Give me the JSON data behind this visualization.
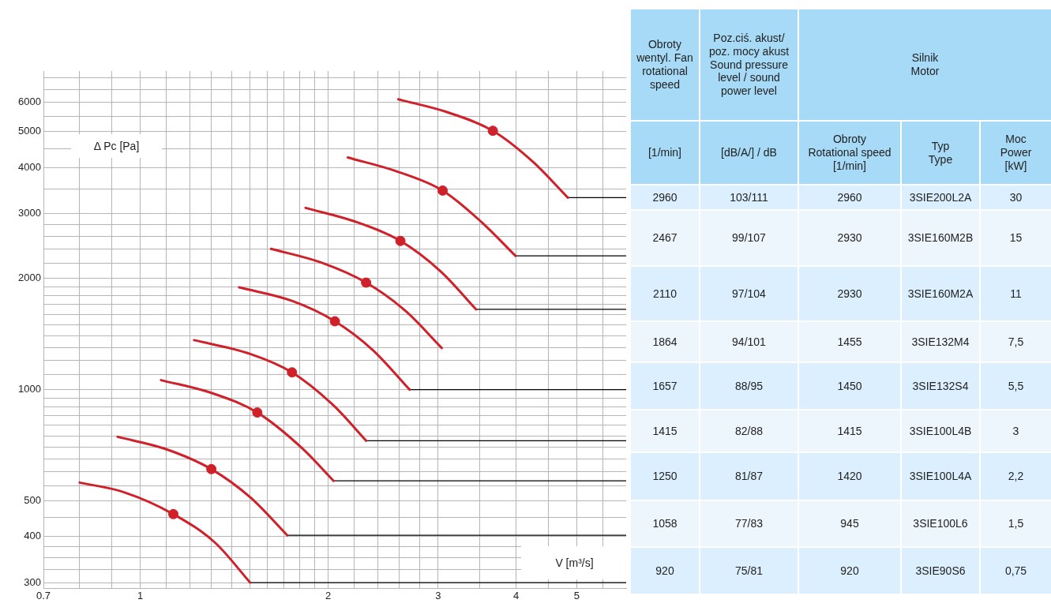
{
  "chart_data": [
    {
      "type": "line",
      "xlabel": "V [m³/s]",
      "ylabel": "Δ Pc [Pa]",
      "log": "xy",
      "grid": true,
      "legend": false,
      "xlim": [
        0.7,
        6
      ],
      "ylim": [
        290,
        7300
      ],
      "xticks": [
        0.7,
        {
          "value": 0.8,
          "label": null
        },
        {
          "value": 0.9,
          "label": null
        },
        1,
        {
          "value": 1.1,
          "label": null
        },
        {
          "value": 1.2,
          "label": null
        },
        {
          "value": 1.3,
          "label": null
        },
        {
          "value": 1.4,
          "label": null
        },
        {
          "value": 1.5,
          "label": null
        },
        {
          "value": 1.6,
          "label": null
        },
        {
          "value": 1.7,
          "label": null
        },
        {
          "value": 1.8,
          "label": null
        },
        {
          "value": 1.9,
          "label": null
        },
        2,
        {
          "value": 2.2,
          "label": null
        },
        {
          "value": 2.4,
          "label": null
        },
        {
          "value": 2.6,
          "label": null
        },
        {
          "value": 2.8,
          "label": null
        },
        3,
        {
          "value": 3.5,
          "label": null
        },
        4,
        {
          "value": 4.5,
          "label": null
        },
        5,
        {
          "value": 5.5,
          "label": null
        }
      ],
      "yticks": [
        300,
        {
          "value": 325,
          "label": null
        },
        {
          "value": 350,
          "label": null
        },
        {
          "value": 375,
          "label": null
        },
        400,
        {
          "value": 450,
          "label": null
        },
        500,
        {
          "value": 550,
          "label": null
        },
        {
          "value": 600,
          "label": null
        },
        {
          "value": 650,
          "label": null
        },
        {
          "value": 700,
          "label": null
        },
        {
          "value": 750,
          "label": null
        },
        {
          "value": 800,
          "label": null
        },
        {
          "value": 850,
          "label": null
        },
        {
          "value": 900,
          "label": null
        },
        {
          "value": 950,
          "label": null
        },
        1000,
        {
          "value": 1100,
          "label": null
        },
        {
          "value": 1200,
          "label": null
        },
        {
          "value": 1300,
          "label": null
        },
        {
          "value": 1400,
          "label": null
        },
        {
          "value": 1500,
          "label": null
        },
        {
          "value": 1600,
          "label": null
        },
        {
          "value": 1700,
          "label": null
        },
        {
          "value": 1800,
          "label": null
        },
        {
          "value": 1900,
          "label": null
        },
        2000,
        {
          "value": 2200,
          "label": null
        },
        {
          "value": 2400,
          "label": null
        },
        {
          "value": 2600,
          "label": null
        },
        {
          "value": 2800,
          "label": null
        },
        3000,
        {
          "value": 3500,
          "label": null
        },
        4000,
        {
          "value": 4500,
          "label": null
        },
        5000,
        {
          "value": 5500,
          "label": null
        },
        6000,
        {
          "value": 6500,
          "label": null
        },
        {
          "value": 7000,
          "label": null
        }
      ],
      "series": [
        {
          "type": "line",
          "color": "#d0202a",
          "marker": "none",
          "x": [
            0.8,
            0.94,
            1.13,
            1.32,
            1.5
          ],
          "values": [
            560,
            528,
            460,
            384,
            300
          ]
        },
        {
          "type": "line",
          "color": "#d0202a",
          "marker": "none",
          "x": [
            0.92,
            1.1,
            1.3,
            1.5,
            1.72
          ],
          "values": [
            745,
            690,
            609,
            511,
            403
          ]
        },
        {
          "type": "line",
          "color": "#d0202a",
          "marker": "none",
          "x": [
            1.08,
            1.3,
            1.54,
            1.82,
            2.04
          ],
          "values": [
            1061,
            980,
            867,
            692,
            566
          ]
        },
        {
          "type": "line",
          "color": "#d0202a",
          "marker": "none",
          "x": [
            1.22,
            1.5,
            1.75,
            2.04,
            2.3
          ],
          "values": [
            1362,
            1250,
            1114,
            906,
            727
          ]
        },
        {
          "type": "line",
          "color": "#d0202a",
          "marker": "none",
          "x": [
            1.44,
            1.75,
            2.05,
            2.36,
            2.7
          ],
          "values": [
            1893,
            1740,
            1532,
            1278,
            1000
          ]
        },
        {
          "type": "line",
          "color": "#d0202a",
          "marker": "none",
          "x": [
            1.62,
            1.95,
            2.3,
            2.66,
            3.04
          ],
          "values": [
            2408,
            2210,
            1950,
            1634,
            1297
          ]
        },
        {
          "type": "line",
          "color": "#d0202a",
          "marker": "none",
          "x": [
            1.84,
            2.2,
            2.61,
            3.03,
            3.45
          ],
          "values": [
            3108,
            2860,
            2529,
            2089,
            1650
          ]
        },
        {
          "type": "line",
          "color": "#d0202a",
          "marker": "none",
          "x": [
            2.15,
            2.58,
            3.05,
            3.52,
            3.99
          ],
          "values": [
            4256,
            3900,
            3463,
            2844,
            2304
          ]
        },
        {
          "type": "line",
          "color": "#d0202a",
          "marker": "none",
          "x": [
            2.59,
            3.1,
            3.67,
            4.25,
            4.84
          ],
          "values": [
            6120,
            5650,
            5029,
            4152,
            3313
          ]
        },
        {
          "type": "line",
          "color": "#000000",
          "marker": "none",
          "x": [
            1.5,
            6
          ],
          "values": [
            300,
            300
          ]
        },
        {
          "type": "line",
          "color": "#000000",
          "marker": "none",
          "x": [
            1.72,
            6
          ],
          "values": [
            403,
            403
          ]
        },
        {
          "type": "line",
          "color": "#000000",
          "marker": "none",
          "x": [
            2.04,
            6
          ],
          "values": [
            566,
            566
          ]
        },
        {
          "type": "line",
          "color": "#000000",
          "marker": "none",
          "x": [
            2.3,
            6
          ],
          "values": [
            727,
            727
          ]
        },
        {
          "type": "line",
          "color": "#000000",
          "marker": "none",
          "x": [
            2.7,
            6
          ],
          "values": [
            1000,
            1000
          ]
        },
        {
          "type": "line",
          "color": "#000000",
          "marker": "none",
          "x": [
            3.45,
            6
          ],
          "values": [
            1650,
            1650
          ]
        },
        {
          "type": "line",
          "color": "#000000",
          "marker": "none",
          "x": [
            3.99,
            6
          ],
          "values": [
            2304,
            2304
          ]
        },
        {
          "type": "line",
          "color": "#000000",
          "marker": "none",
          "x": [
            4.84,
            6
          ],
          "values": [
            3313,
            3313
          ]
        },
        {
          "type": "scatter",
          "color": "#d0202a",
          "marker": "circle",
          "x": [
            1.13,
            1.3,
            1.54,
            1.75,
            2.05,
            2.3,
            2.61,
            3.05,
            3.67
          ],
          "values": [
            460,
            609,
            867,
            1114,
            1532,
            1950,
            2529,
            3463,
            5029
          ]
        }
      ]
    },
    {
      "type": "other",
      "annotations": [
        "Obroty wentyl. Fan rotational speed",
        "Poz.ciś. akust/ poz. mocy akust Sound pressure level / sound power level",
        "Silnik\nMotor",
        "[1/min]",
        "[dB/A/] / dB",
        "Obroty\nRotational speed\n[1/min]",
        "Typ\nType",
        "Moc\nPower\n[kW]",
        "2960",
        "103/111",
        "2960",
        "3SIE200L2A",
        "30",
        "2467",
        "99/107",
        "2930",
        "3SIE160M2B",
        "15",
        "2110",
        "97/104",
        "2930",
        "3SIE160M2A",
        "11",
        "1864",
        "94/101",
        "1455",
        "3SIE132M4",
        "7,5",
        "1657",
        "88/95",
        "1450",
        "3SIE132S4",
        "5,5",
        "1415",
        "82/88",
        "1415",
        "3SIE100L4B",
        "3",
        "1250",
        "81/87",
        "1420",
        "3SIE100L4A",
        "2,2",
        "1058",
        "77/83",
        "945",
        "3SIE100L6",
        "1,5",
        "920",
        "75/81",
        "920",
        "3SIE90S6",
        "0,75"
      ]
    }
  ]
}
